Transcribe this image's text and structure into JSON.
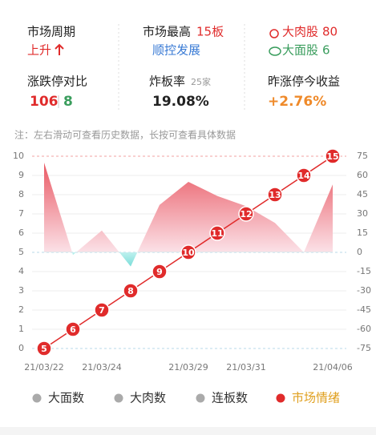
{
  "stats": {
    "cycle": {
      "label": "市场周期",
      "value": "上升"
    },
    "highest": {
      "label": "市场最高",
      "value": "15板",
      "stock": "顺控发展"
    },
    "meat": {
      "label": "大肉股",
      "value": "80"
    },
    "noodle": {
      "label": "大面股",
      "value": "6"
    },
    "limit": {
      "label": "涨跌停对比",
      "up": "106",
      "down": "8"
    },
    "broken": {
      "label": "炸板率",
      "count": "25家",
      "value": "19.08%"
    },
    "yield": {
      "label": "昨涨停今收益",
      "value": "+2.76%"
    }
  },
  "note": "注：左右滑动可查看历史数据，长按可查看具体数据",
  "chart_data": {
    "type": "line",
    "categories": [
      "21/03/22",
      null,
      "21/03/24",
      null,
      null,
      "21/03/29",
      null,
      "21/03/31",
      null,
      null,
      "21/04/06"
    ],
    "ylim": [
      0,
      10
    ],
    "yticks": [
      0,
      1,
      2,
      3,
      4,
      5,
      6,
      7,
      8,
      9,
      10
    ],
    "y2lim": [
      -75,
      75
    ],
    "y2ticks": [
      -75,
      -60,
      -45,
      -30,
      -15,
      0,
      15,
      30,
      45,
      60,
      75
    ],
    "y3lim": [
      5,
      15
    ],
    "series": [
      {
        "name": "市场情绪",
        "color": "#e8505b",
        "axis": "y2",
        "values": [
          70,
          -2,
          17,
          -11,
          37,
          55,
          44,
          36,
          23,
          0,
          53
        ]
      },
      {
        "color": "#e02b2b",
        "axis": "y3",
        "values": [
          5,
          6,
          7,
          8,
          9,
          10,
          11,
          12,
          13,
          14,
          15
        ]
      }
    ],
    "legend": [
      {
        "name": "大面数",
        "color": "#aaaaaa"
      },
      {
        "name": "大肉数",
        "color": "#aaaaaa"
      },
      {
        "name": "连板数",
        "color": "#aaaaaa"
      },
      {
        "name": "市场情绪",
        "color": "#e02b2b"
      }
    ]
  }
}
